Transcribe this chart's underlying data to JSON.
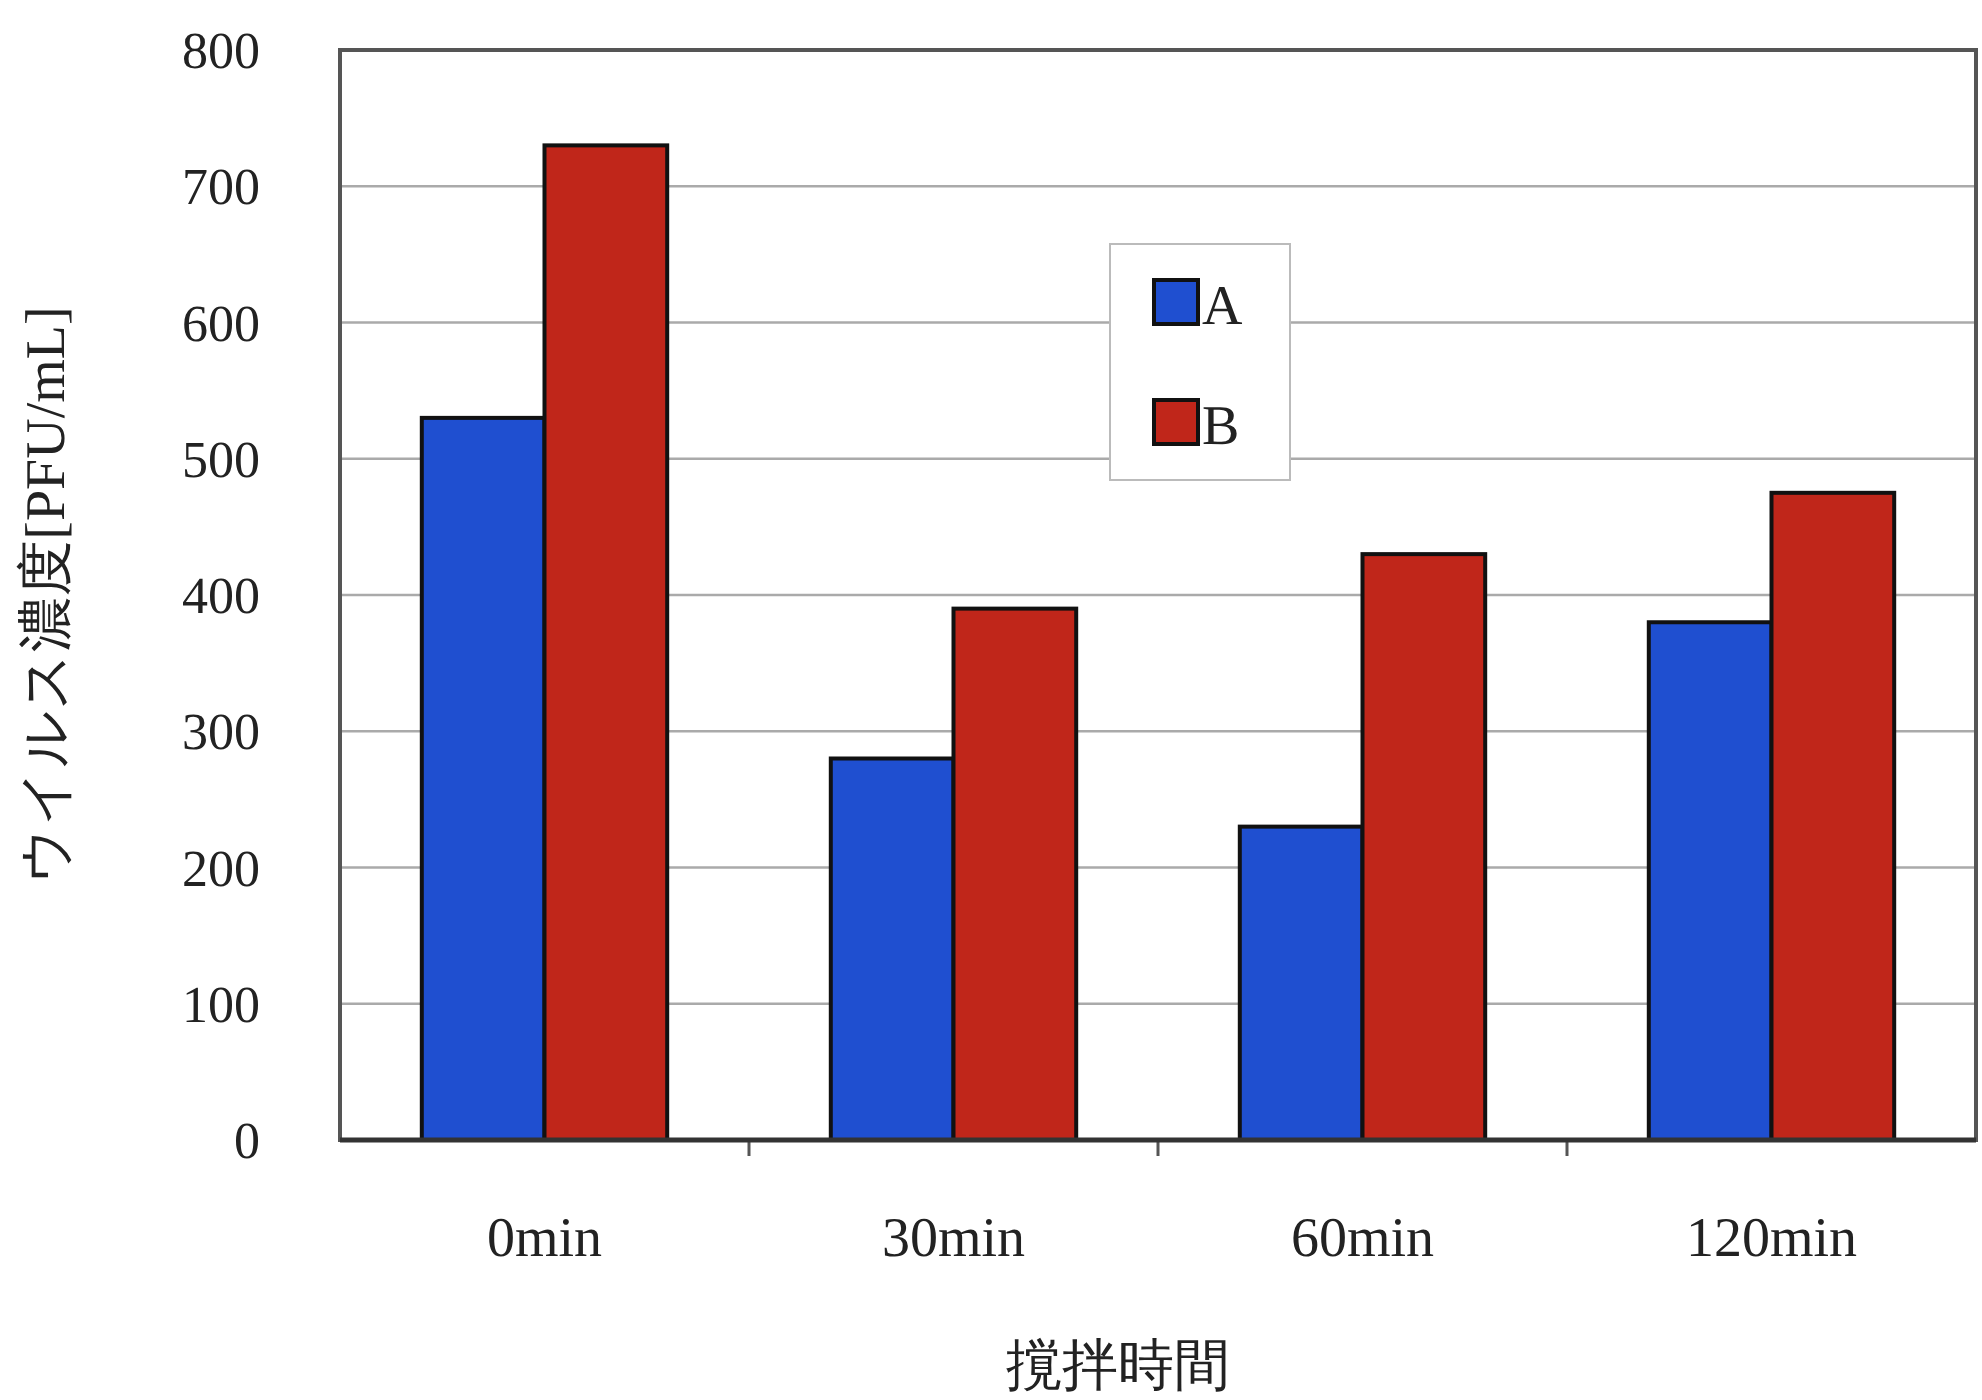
{
  "chart_data": {
    "type": "bar",
    "xlabel": "撹拌時間",
    "ylabel": "ウイルス濃度[PFU/mL]",
    "categories": [
      "0min",
      "30min",
      "60min",
      "120min"
    ],
    "series": [
      {
        "name": "A",
        "color": "#1f4fd0",
        "values": [
          530,
          280,
          230,
          380
        ]
      },
      {
        "name": "B",
        "color": "#c0261a",
        "values": [
          730,
          390,
          430,
          475
        ]
      }
    ],
    "ylim": [
      0,
      800
    ],
    "yticks": [
      0,
      100,
      200,
      300,
      400,
      500,
      600,
      700,
      800
    ],
    "grid": "y",
    "legend": "top"
  }
}
